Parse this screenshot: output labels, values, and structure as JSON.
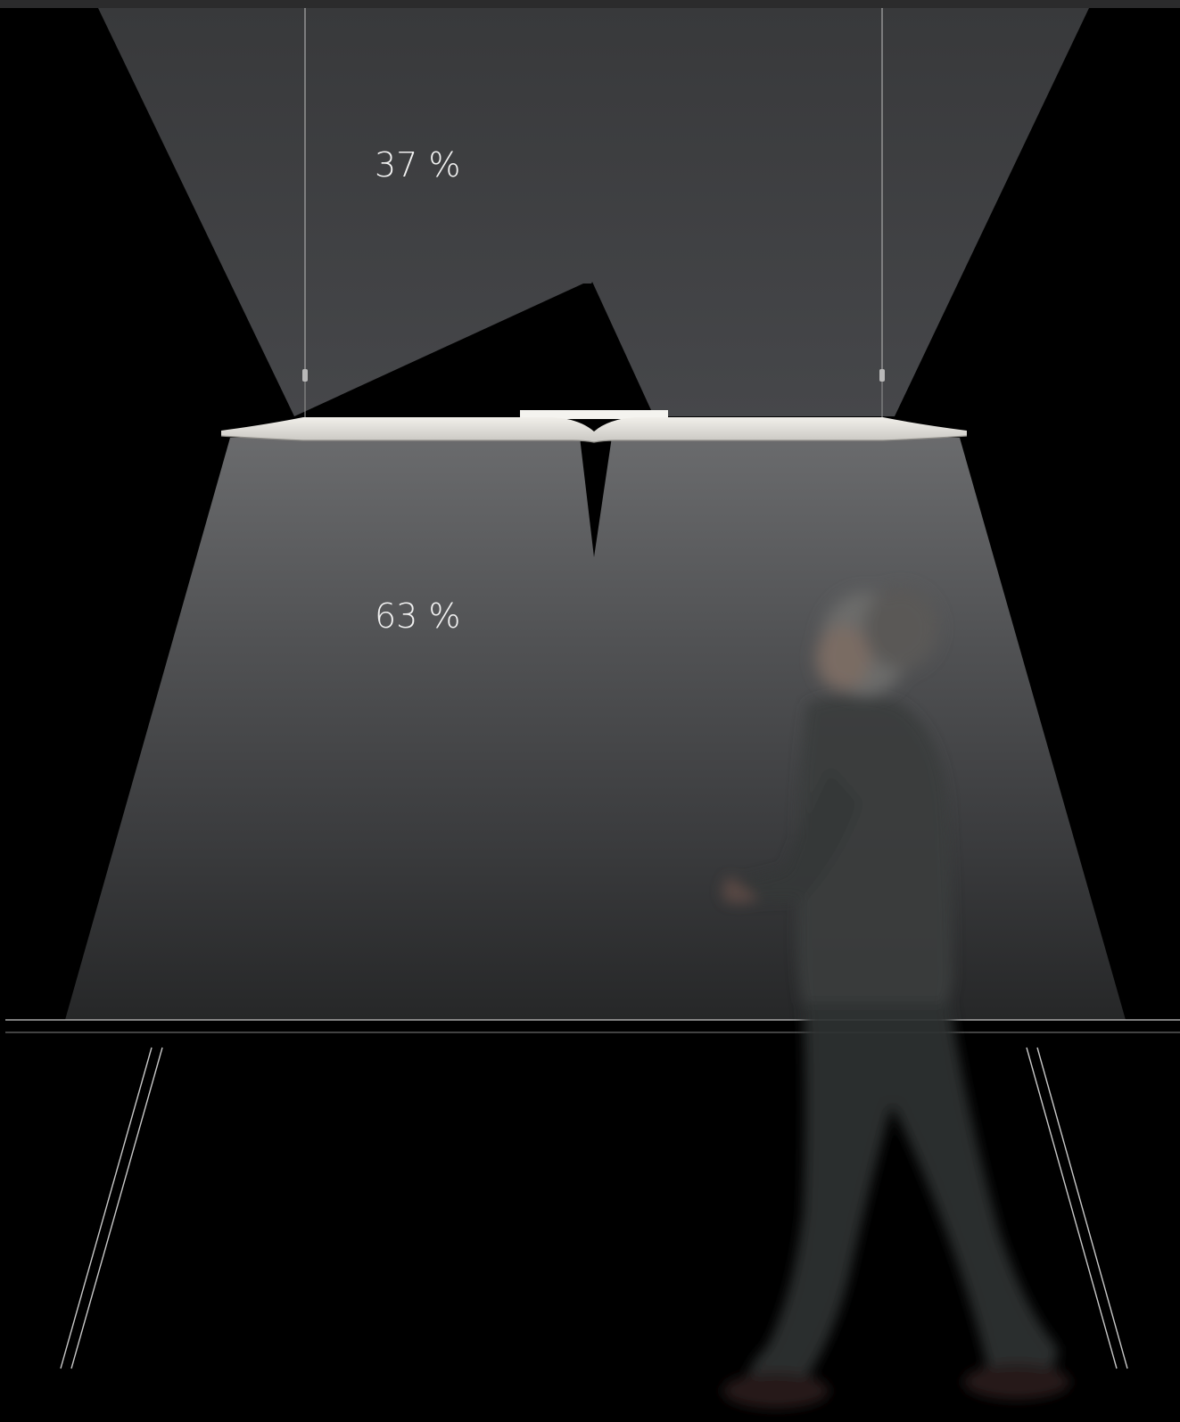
{
  "distribution": {
    "uplight": {
      "label": "37 %",
      "value_percent": 37
    },
    "downlight": {
      "label": "63 %",
      "value_percent": 63
    }
  },
  "colors": {
    "background": "#000000",
    "uplight_beam": "#3f4042",
    "downlight_beam": "#5a5b5d",
    "luminaire": "#e6e4df",
    "outline": "#bdbdbd"
  }
}
